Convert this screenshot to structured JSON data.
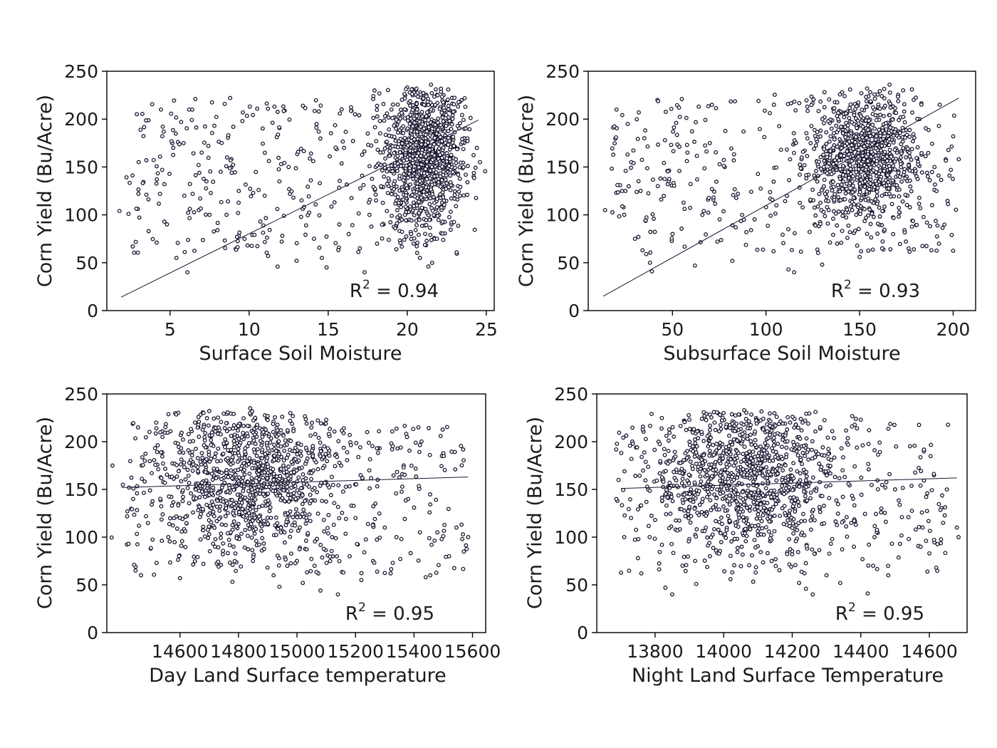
{
  "colors": {
    "marker_stroke": "#1b1530",
    "marker_fill": "#ffffff",
    "line": "#1b1530",
    "axes": "#000000"
  },
  "chart_data": [
    {
      "type": "scatter",
      "xlabel": "Surface Soil Moisture",
      "ylabel": "Corn Yield (Bu/Acre)",
      "xlim": [
        1,
        25.5
      ],
      "ylim": [
        0,
        250
      ],
      "xticks": [
        5,
        10,
        15,
        20,
        25
      ],
      "yticks": [
        0,
        50,
        100,
        150,
        200,
        250
      ],
      "annotation": "R",
      "annotation_sup": "2",
      "annotation_rest": " = 0.94",
      "r2": 0.94,
      "fit_line": [
        [
          1.9,
          14
        ],
        [
          24.5,
          199
        ]
      ],
      "cluster": {
        "center": [
          21,
          160
        ],
        "spread": [
          1.2,
          38
        ],
        "n": 1050
      },
      "points": [
        [
          1.8,
          104
        ],
        [
          3,
          122
        ],
        [
          3.5,
          157
        ],
        [
          4.5,
          147
        ],
        [
          4.6,
          187
        ],
        [
          4.8,
          90
        ],
        [
          5.2,
          170
        ],
        [
          5.4,
          55
        ],
        [
          5.5,
          176
        ],
        [
          5.7,
          197
        ],
        [
          5.9,
          120
        ],
        [
          6.1,
          40
        ],
        [
          6.2,
          210
        ],
        [
          6.4,
          210
        ],
        [
          6.6,
          221
        ],
        [
          6.8,
          152
        ],
        [
          7.0,
          165
        ],
        [
          7.3,
          135
        ],
        [
          7.5,
          100
        ],
        [
          7.8,
          193
        ],
        [
          8.0,
          84
        ],
        [
          8.2,
          145
        ],
        [
          8.6,
          160
        ],
        [
          8.8,
          222
        ],
        [
          9.0,
          192
        ],
        [
          9.3,
          102
        ],
        [
          9.6,
          207
        ],
        [
          9.9,
          68
        ],
        [
          10.2,
          79
        ],
        [
          10.6,
          126
        ],
        [
          10.9,
          89
        ],
        [
          11.2,
          57
        ],
        [
          11.6,
          213
        ],
        [
          11.8,
          46
        ],
        [
          12.2,
          99
        ],
        [
          12.5,
          150
        ],
        [
          12.8,
          118
        ],
        [
          13.0,
          52
        ],
        [
          13.4,
          214
        ],
        [
          13.6,
          89
        ],
        [
          13.9,
          136
        ],
        [
          14.1,
          75
        ],
        [
          14.4,
          187
        ],
        [
          14.6,
          55
        ],
        [
          14.9,
          45
        ],
        [
          15.1,
          161
        ],
        [
          15.4,
          113
        ],
        [
          15.7,
          90
        ],
        [
          16.0,
          170
        ],
        [
          16.3,
          80
        ],
        [
          16.7,
          205
        ],
        [
          17.0,
          65
        ],
        [
          17.3,
          40
        ],
        [
          17.5,
          185
        ],
        [
          18.0,
          150
        ],
        [
          18.5,
          90
        ],
        [
          19.0,
          210
        ],
        [
          19.5,
          110
        ],
        [
          20.0,
          233
        ],
        [
          20.4,
          70
        ],
        [
          20.8,
          55
        ],
        [
          21.5,
          236
        ],
        [
          22.3,
          225
        ],
        [
          22.8,
          90
        ],
        [
          23.2,
          130
        ],
        [
          23.6,
          180
        ],
        [
          24.2,
          140
        ],
        [
          24.4,
          170
        ],
        [
          24.6,
          155
        ]
      ]
    },
    {
      "type": "scatter",
      "xlabel": "Subsurface Soil Moisture",
      "ylabel": "Corn Yield (Bu/Acre)",
      "xlim": [
        5,
        212
      ],
      "ylim": [
        0,
        250
      ],
      "xticks": [
        50,
        100,
        150,
        200
      ],
      "yticks": [
        0,
        50,
        100,
        150,
        200,
        250
      ],
      "annotation": "R",
      "annotation_sup": "2",
      "annotation_rest": " = 0.93",
      "r2": 0.93,
      "fit_line": [
        [
          13,
          15
        ],
        [
          203,
          222
        ]
      ],
      "cluster": {
        "center": [
          152,
          158
        ],
        "spread": [
          14,
          32
        ],
        "n": 900
      },
      "points": [
        [
          14,
          105
        ],
        [
          20,
          123
        ],
        [
          22,
          131
        ],
        [
          25,
          146
        ],
        [
          26,
          163
        ],
        [
          28,
          155
        ],
        [
          30,
          75
        ],
        [
          32,
          207
        ],
        [
          33,
          125
        ],
        [
          34,
          63
        ],
        [
          35,
          180
        ],
        [
          36,
          59
        ],
        [
          38,
          50
        ],
        [
          39,
          41
        ],
        [
          40,
          96
        ],
        [
          42,
          220
        ],
        [
          44,
          116
        ],
        [
          46,
          178
        ],
        [
          48,
          135
        ],
        [
          50,
          80
        ],
        [
          52,
          196
        ],
        [
          55,
          221
        ],
        [
          58,
          165
        ],
        [
          62,
          47
        ],
        [
          64,
          213
        ],
        [
          66,
          100
        ],
        [
          70,
          175
        ],
        [
          74,
          72
        ],
        [
          78,
          150
        ],
        [
          82,
          52
        ],
        [
          85,
          122
        ],
        [
          88,
          187
        ],
        [
          92,
          84
        ],
        [
          96,
          219
        ],
        [
          100,
          108
        ],
        [
          104,
          62
        ],
        [
          108,
          168
        ],
        [
          112,
          43
        ],
        [
          115,
          40
        ],
        [
          118,
          142
        ],
        [
          122,
          213
        ],
        [
          126,
          90
        ],
        [
          130,
          48
        ],
        [
          134,
          196
        ],
        [
          138,
          70
        ],
        [
          142,
          224
        ],
        [
          146,
          105
        ],
        [
          150,
          56
        ],
        [
          154,
          232
        ],
        [
          158,
          190
        ],
        [
          162,
          120
        ],
        [
          166,
          236
        ],
        [
          170,
          165
        ],
        [
          174,
          84
        ],
        [
          178,
          231
        ],
        [
          182,
          200
        ],
        [
          186,
          92
        ],
        [
          190,
          150
        ],
        [
          196,
          158
        ],
        [
          198,
          141
        ],
        [
          200,
          182
        ],
        [
          203,
          158
        ]
      ]
    },
    {
      "type": "scatter",
      "xlabel": "Day Land Surface temperature",
      "ylabel": "Corn Yield (Bu/Acre)",
      "xlim": [
        14350,
        15645
      ],
      "ylim": [
        0,
        250
      ],
      "xticks": [
        14600,
        14800,
        15000,
        15200,
        15400,
        15600
      ],
      "yticks": [
        0,
        50,
        100,
        150,
        200,
        250
      ],
      "annotation": "R",
      "annotation_sup": "2",
      "annotation_rest": " = 0.95",
      "r2": 0.95,
      "fit_line": [
        [
          14400,
          152
        ],
        [
          15585,
          163
        ]
      ],
      "cluster": {
        "center": [
          14830,
          165
        ],
        "spread": [
          150,
          38
        ],
        "n": 950
      },
      "points": [
        [
          14405,
          155
        ],
        [
          14420,
          127
        ],
        [
          14440,
          140
        ],
        [
          14460,
          112
        ],
        [
          14480,
          180
        ],
        [
          14500,
          88
        ],
        [
          14520,
          73
        ],
        [
          14540,
          205
        ],
        [
          14560,
          100
        ],
        [
          14580,
          120
        ],
        [
          14600,
          57
        ],
        [
          14640,
          211
        ],
        [
          14660,
          79
        ],
        [
          14680,
          72
        ],
        [
          14700,
          232
        ],
        [
          14720,
          90
        ],
        [
          14760,
          229
        ],
        [
          14780,
          71
        ],
        [
          14800,
          100
        ],
        [
          14840,
          235
        ],
        [
          14880,
          86
        ],
        [
          14920,
          60
        ],
        [
          14940,
          48
        ],
        [
          14960,
          125
        ],
        [
          15000,
          75
        ],
        [
          15020,
          52
        ],
        [
          15040,
          188
        ],
        [
          15060,
          70
        ],
        [
          15080,
          44
        ],
        [
          15100,
          223
        ],
        [
          15120,
          100
        ],
        [
          15140,
          40
        ],
        [
          15160,
          214
        ],
        [
          15180,
          80
        ],
        [
          15200,
          120
        ],
        [
          15220,
          55
        ],
        [
          15240,
          210
        ],
        [
          15260,
          75
        ],
        [
          15280,
          211
        ],
        [
          15300,
          110
        ],
        [
          15320,
          62
        ],
        [
          15340,
          100
        ],
        [
          15360,
          166
        ],
        [
          15380,
          140
        ],
        [
          15400,
          131
        ],
        [
          15420,
          105
        ],
        [
          15440,
          58
        ],
        [
          15460,
          92
        ],
        [
          15480,
          105
        ],
        [
          15500,
          101
        ],
        [
          15520,
          80
        ],
        [
          15545,
          110
        ],
        [
          15585,
          100
        ]
      ]
    },
    {
      "type": "scatter",
      "xlabel": "Night Land Surface Temperature",
      "ylabel": "Corn Yield (Bu/Acre)",
      "xlim": [
        13630,
        14710
      ],
      "ylim": [
        0,
        250
      ],
      "xticks": [
        13800,
        14000,
        14200,
        14400,
        14600
      ],
      "yticks": [
        0,
        50,
        100,
        150,
        200,
        250
      ],
      "annotation": "R",
      "annotation_sup": "2",
      "annotation_rest": " = 0.95",
      "r2": 0.95,
      "fit_line": [
        [
          13700,
          151
        ],
        [
          14680,
          162
        ]
      ],
      "cluster": {
        "center": [
          14060,
          165
        ],
        "spread": [
          130,
          38
        ],
        "n": 950
      },
      "points": [
        [
          13690,
          138
        ],
        [
          13710,
          100
        ],
        [
          13730,
          120
        ],
        [
          13750,
          78
        ],
        [
          13760,
          62
        ],
        [
          13780,
          150
        ],
        [
          13800,
          118
        ],
        [
          13810,
          200
        ],
        [
          13820,
          92
        ],
        [
          13830,
          47
        ],
        [
          13840,
          180
        ],
        [
          13850,
          40
        ],
        [
          13860,
          108
        ],
        [
          13880,
          70
        ],
        [
          13900,
          223
        ],
        [
          13920,
          51
        ],
        [
          13960,
          80
        ],
        [
          14000,
          230
        ],
        [
          14020,
          56
        ],
        [
          14060,
          233
        ],
        [
          14100,
          102
        ],
        [
          14140,
          75
        ],
        [
          14180,
          200
        ],
        [
          14220,
          52
        ],
        [
          14240,
          46
        ],
        [
          14260,
          40
        ],
        [
          14300,
          60
        ],
        [
          14340,
          52
        ],
        [
          14380,
          90
        ],
        [
          14400,
          223
        ],
        [
          14420,
          41
        ],
        [
          14440,
          100
        ],
        [
          14460,
          130
        ],
        [
          14480,
          60
        ],
        [
          14500,
          150
        ],
        [
          14520,
          121
        ],
        [
          14540,
          98
        ],
        [
          14560,
          108
        ],
        [
          14580,
          110
        ],
        [
          14600,
          83
        ],
        [
          14620,
          68
        ],
        [
          14640,
          115
        ],
        [
          14680,
          110
        ],
        [
          14685,
          100
        ]
      ]
    }
  ]
}
